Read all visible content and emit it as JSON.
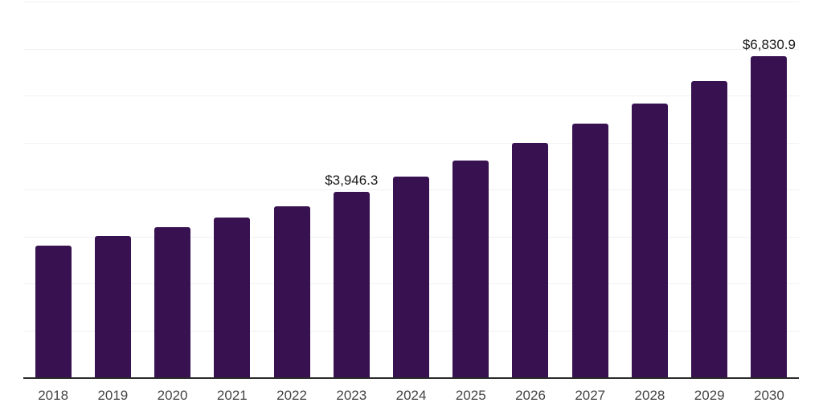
{
  "chart_data": {
    "type": "bar",
    "title": "",
    "xlabel": "",
    "ylabel": "",
    "categories": [
      "2018",
      "2019",
      "2020",
      "2021",
      "2022",
      "2023",
      "2024",
      "2025",
      "2026",
      "2027",
      "2028",
      "2029",
      "2030"
    ],
    "values": [
      2800,
      3010,
      3190,
      3410,
      3645,
      3946.3,
      4267.5,
      4614.9,
      4990.6,
      5396.9,
      5836.3,
      6311.4,
      6830.9
    ],
    "value_labels": [
      "",
      "",
      "",
      "",
      "",
      "$3,946.3",
      "",
      "",
      "",
      "",
      "",
      "",
      "$6,830.9"
    ],
    "ylim": [
      0,
      8000
    ],
    "grid_step": 1000,
    "grid": "horizontal",
    "legend": "none",
    "colors": {
      "bar": "#371150",
      "axis": "#2b2b2b",
      "grid": "#f1f1f4",
      "tick_label": "#444444",
      "value_label": "#1a1a1a"
    }
  }
}
